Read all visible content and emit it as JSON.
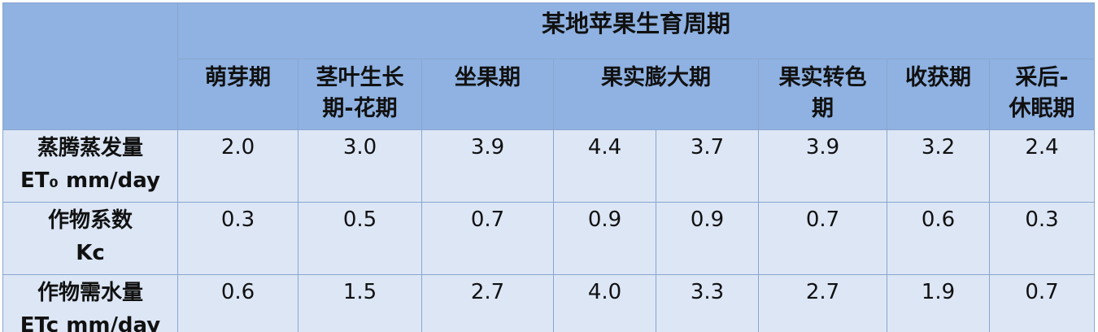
{
  "table": {
    "title": "某地苹果生育周期",
    "stages": [
      "萌芽期",
      "茎叶生长\n期-花期",
      "坐果期",
      "果实膨大期",
      "果实转色\n期",
      "收获期",
      "采后-\n休眠期"
    ],
    "rows": [
      {
        "label": "蒸腾蒸发量\nET₀ mm/day",
        "values": [
          "2.0",
          "3.0",
          "3.9",
          "4.4",
          "3.7",
          "3.9",
          "3.2",
          "2.4"
        ]
      },
      {
        "label": "作物系数\nKc",
        "values": [
          "0.3",
          "0.5",
          "0.7",
          "0.9",
          "0.9",
          "0.7",
          "0.6",
          "0.3"
        ]
      },
      {
        "label": "作物需水量\nETc mm/day",
        "values": [
          "0.6",
          "1.5",
          "2.7",
          "4.0",
          "3.3",
          "2.7",
          "1.9",
          "0.7"
        ]
      }
    ]
  }
}
